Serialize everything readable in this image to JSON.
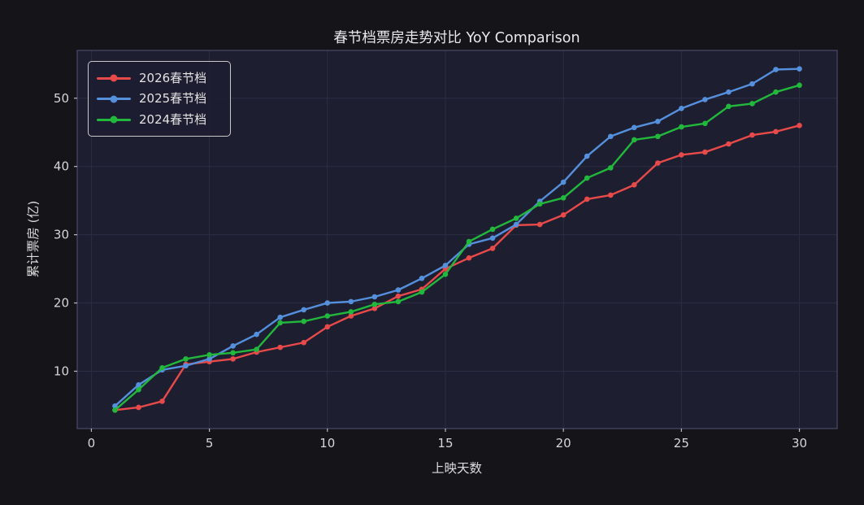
{
  "chart_data": {
    "type": "line",
    "title": "春节档票房走势对比 YoY Comparison",
    "xlabel": "上映天数",
    "ylabel": "累计票房 (亿)",
    "xlim": [
      -0.6,
      31.6
    ],
    "ylim": [
      1.6,
      57.0
    ],
    "x_ticks": [
      0,
      5,
      10,
      15,
      20,
      25,
      30
    ],
    "y_ticks": [
      10,
      20,
      30,
      40,
      50
    ],
    "grid": true,
    "legend_position": "upper-left",
    "x": [
      1,
      2,
      3,
      4,
      5,
      6,
      7,
      8,
      9,
      10,
      11,
      12,
      13,
      14,
      15,
      16,
      17,
      18,
      19,
      20,
      21,
      22,
      23,
      24,
      25,
      26,
      27,
      28,
      29,
      30
    ],
    "series": [
      {
        "name": "2026春节档",
        "color": "#e84a4a",
        "values": [
          4.3,
          4.7,
          5.6,
          11.0,
          11.4,
          11.8,
          12.8,
          13.5,
          14.2,
          16.5,
          18.1,
          19.2,
          21.0,
          22.0,
          25.0,
          26.6,
          28.0,
          31.4,
          31.5,
          32.9,
          35.2,
          35.8,
          37.3,
          40.5,
          41.7,
          42.1,
          43.3,
          44.6,
          45.1,
          46.0
        ]
      },
      {
        "name": "2025春节档",
        "color": "#5590dd",
        "values": [
          4.9,
          8.0,
          10.2,
          10.8,
          11.8,
          13.7,
          15.4,
          17.9,
          19.0,
          20.0,
          20.2,
          20.9,
          21.9,
          23.6,
          25.5,
          28.6,
          29.5,
          31.5,
          34.9,
          37.7,
          41.5,
          44.4,
          45.7,
          46.6,
          48.5,
          49.8,
          50.9,
          52.1,
          54.2,
          54.3
        ]
      },
      {
        "name": "2024春节档",
        "color": "#21b83c",
        "values": [
          4.3,
          7.3,
          10.5,
          11.8,
          12.4,
          12.7,
          13.2,
          17.1,
          17.3,
          18.1,
          18.7,
          19.8,
          20.2,
          21.6,
          24.2,
          29.0,
          30.8,
          32.4,
          34.5,
          35.4,
          38.3,
          39.8,
          43.9,
          44.4,
          45.8,
          46.3,
          48.8,
          49.2,
          50.9,
          51.9
        ]
      }
    ]
  },
  "style": {
    "figure_bg": "#141419",
    "axes_bg": "#1e1e31",
    "spine_color": "#4a4a68",
    "grid_color": "#2c2c44",
    "tick_color": "#b8b8c8",
    "text_color": "#e6e6e6",
    "tick_label_color": "#d6d6d6"
  }
}
